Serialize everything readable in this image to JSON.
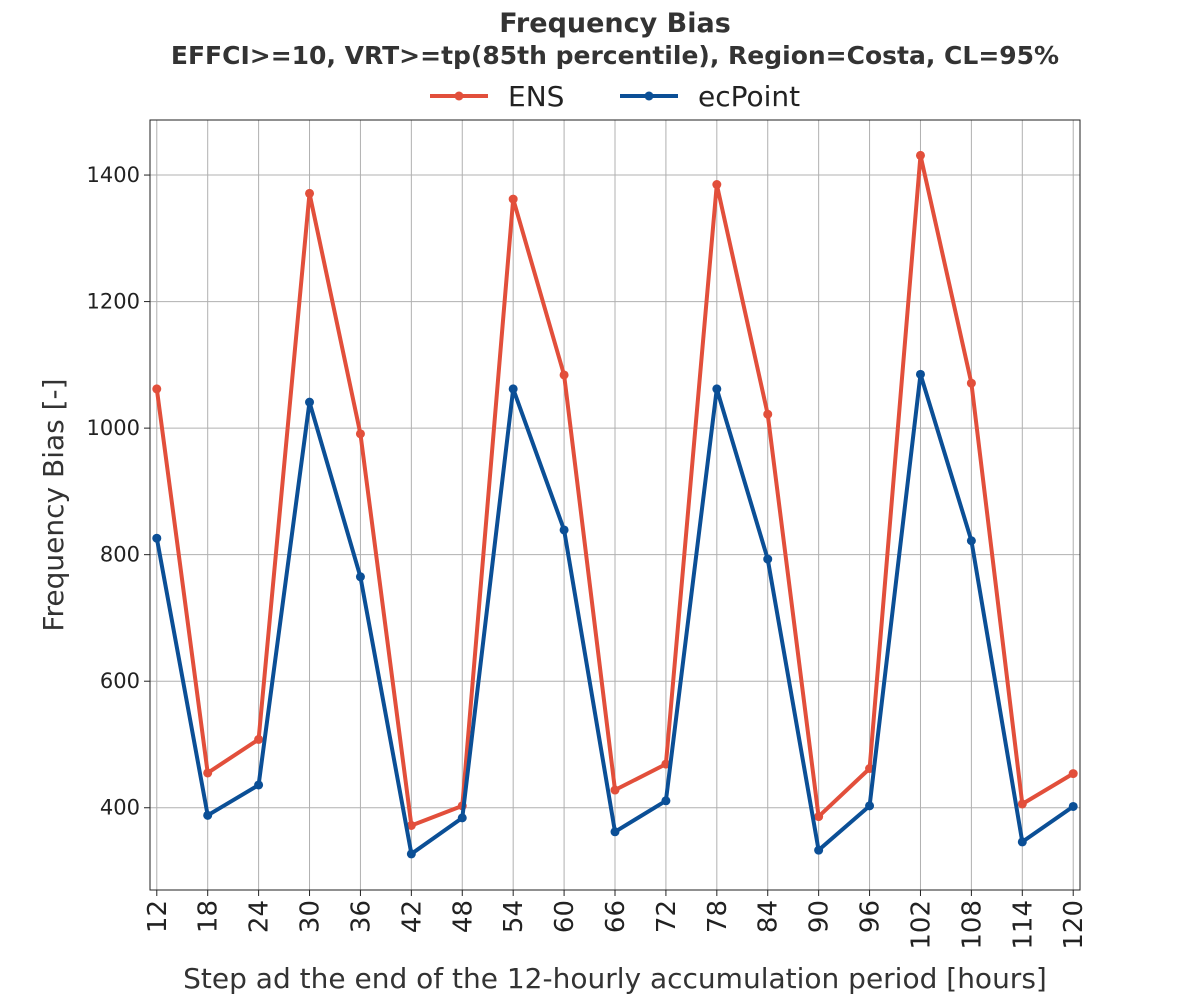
{
  "chart_data": {
    "type": "line",
    "title": "Frequency Bias",
    "subtitle": "EFFCI>=10, VRT>=tp(85th percentile), Region=Costa, CL=95%",
    "xlabel": "Step ad the end of the 12-hourly accumulation period [hours]",
    "ylabel": "Frequency Bias [-]",
    "x": [
      12,
      18,
      24,
      30,
      36,
      42,
      48,
      54,
      60,
      66,
      72,
      78,
      84,
      90,
      96,
      102,
      108,
      114,
      120
    ],
    "xlim": [
      11.2,
      120.8
    ],
    "ylim": [
      270,
      1487
    ],
    "yticks": [
      400,
      600,
      800,
      1000,
      1200,
      1400
    ],
    "grid": true,
    "legend_position": "top-center",
    "series": [
      {
        "name": "ENS",
        "color": "#e24f3b",
        "values": [
          1062,
          455,
          508,
          1371,
          991,
          372,
          403,
          1362,
          1084,
          428,
          469,
          1385,
          1022,
          386,
          462,
          1431,
          1071,
          406,
          454
        ]
      },
      {
        "name": "ecPoint",
        "color": "#0b4f96",
        "values": [
          826,
          388,
          436,
          1041,
          765,
          327,
          384,
          1062,
          839,
          362,
          411,
          1062,
          793,
          333,
          403,
          1085,
          822,
          346,
          402
        ]
      }
    ]
  }
}
